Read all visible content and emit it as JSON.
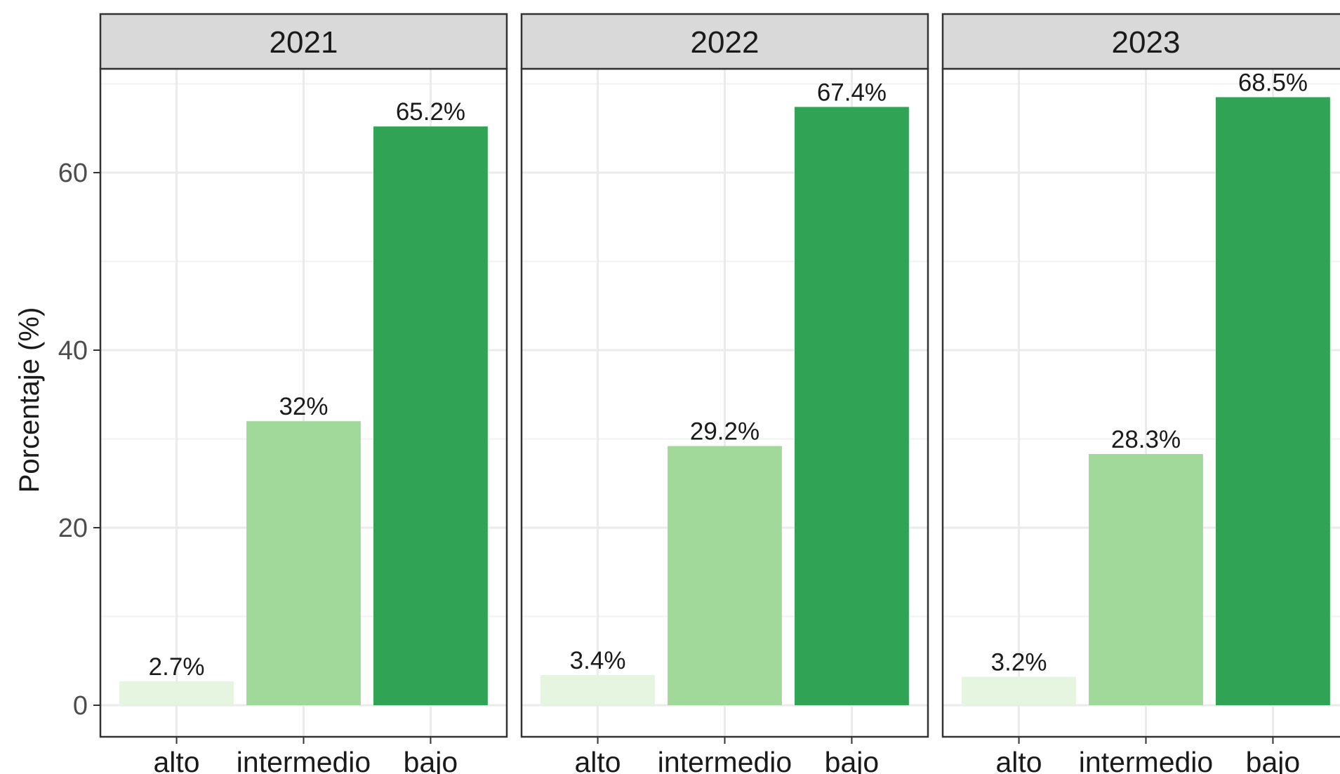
{
  "chart_data": {
    "type": "bar",
    "ylabel": "Porcentaje (%)",
    "xlabel": "",
    "ylim": [
      0,
      72
    ],
    "y_ticks": [
      0,
      20,
      40,
      60
    ],
    "y_tick_labels": [
      "0",
      "20",
      "40",
      "60"
    ],
    "grid": true,
    "facet_by": "year",
    "categories": [
      "alto",
      "intermedio",
      "bajo"
    ],
    "category_colors": [
      "#e5f5e0",
      "#a1d99b",
      "#31a354"
    ],
    "panels": [
      {
        "name": "2021",
        "values": [
          2.7,
          32,
          65.2
        ],
        "labels": [
          "2.7%",
          "32%",
          "65.2%"
        ]
      },
      {
        "name": "2022",
        "values": [
          3.4,
          29.2,
          67.4
        ],
        "labels": [
          "3.4%",
          "29.2%",
          "67.4%"
        ]
      },
      {
        "name": "2023",
        "values": [
          3.2,
          28.3,
          68.5
        ],
        "labels": [
          "3.2%",
          "28.3%",
          "68.5%"
        ]
      }
    ]
  }
}
